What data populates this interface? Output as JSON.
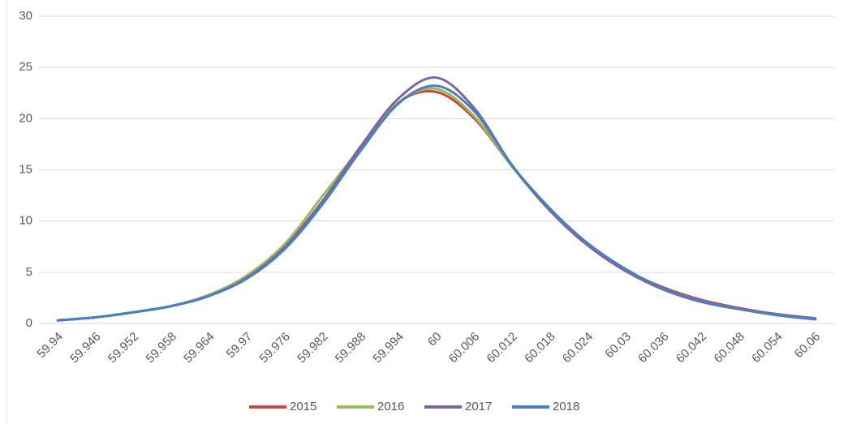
{
  "chart_data": {
    "type": "line",
    "categories": [
      "59.94",
      "59.946",
      "59.952",
      "59.958",
      "59.964",
      "59.97",
      "59.976",
      "59.982",
      "59.988",
      "59.994",
      "60",
      "60.006",
      "60.012",
      "60.018",
      "60.024",
      "60.03",
      "60.036",
      "60.042",
      "60.048",
      "60.054",
      "60.06"
    ],
    "series": [
      {
        "name": "2015",
        "color": "#c8473f",
        "values": [
          0.3,
          0.6,
          1.1,
          1.7,
          2.8,
          4.6,
          7.6,
          12.0,
          17.3,
          21.6,
          22.6,
          20.0,
          15.3,
          11.0,
          7.6,
          5.2,
          3.5,
          2.3,
          1.5,
          0.9,
          0.5
        ]
      },
      {
        "name": "2016",
        "color": "#9bbb59",
        "values": [
          0.3,
          0.6,
          1.1,
          1.7,
          2.8,
          4.7,
          7.8,
          12.5,
          17.2,
          21.6,
          22.9,
          20.2,
          15.3,
          11.0,
          7.7,
          5.2,
          3.4,
          2.2,
          1.4,
          0.9,
          0.5
        ]
      },
      {
        "name": "2017",
        "color": "#8064a2",
        "values": [
          0.3,
          0.6,
          1.1,
          1.7,
          2.7,
          4.5,
          7.5,
          12.0,
          17.3,
          22.0,
          24.0,
          21.0,
          15.4,
          11.0,
          7.6,
          5.1,
          3.3,
          2.1,
          1.4,
          0.9,
          0.5
        ]
      },
      {
        "name": "2018",
        "color": "#4a7fc4",
        "values": [
          0.3,
          0.6,
          1.1,
          1.7,
          2.7,
          4.4,
          7.3,
          11.7,
          16.9,
          21.5,
          23.2,
          20.7,
          15.4,
          11.2,
          7.8,
          5.3,
          3.4,
          2.2,
          1.4,
          0.8,
          0.4
        ]
      }
    ],
    "ylim": [
      0,
      30
    ],
    "yticks": [
      0,
      5,
      10,
      15,
      20,
      25,
      30
    ],
    "grid": true,
    "legend": "bottom"
  }
}
